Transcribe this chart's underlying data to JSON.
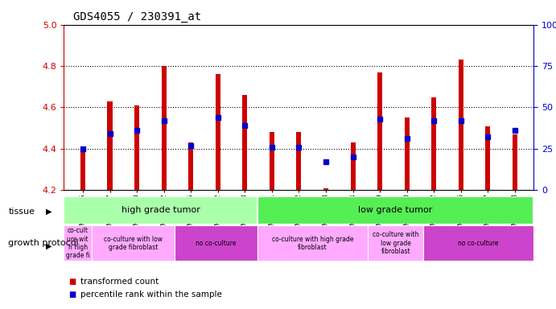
{
  "title": "GDS4055 / 230391_at",
  "samples": [
    "GSM665455",
    "GSM665447",
    "GSM665450",
    "GSM665452",
    "GSM665095",
    "GSM665102",
    "GSM665103",
    "GSM665071",
    "GSM665072",
    "GSM665073",
    "GSM665094",
    "GSM665069",
    "GSM665070",
    "GSM665042",
    "GSM665066",
    "GSM665067",
    "GSM665068"
  ],
  "transformed_count": [
    4.4,
    4.63,
    4.61,
    4.8,
    4.43,
    4.76,
    4.66,
    4.48,
    4.48,
    4.21,
    4.43,
    4.77,
    4.55,
    4.65,
    4.83,
    4.51,
    4.47
  ],
  "percentile_rank_pct": [
    25,
    34,
    36,
    42,
    27,
    44,
    39,
    26,
    26,
    17,
    20,
    43,
    31,
    42,
    42,
    32,
    36
  ],
  "ylim_left": [
    4.2,
    5.0
  ],
  "yticks_left": [
    4.2,
    4.4,
    4.6,
    4.8,
    5.0
  ],
  "ylim_right": [
    0,
    100
  ],
  "yticks_right": [
    0,
    25,
    50,
    75,
    100
  ],
  "yright_labels": [
    "0",
    "25",
    "50",
    "75",
    "100%"
  ],
  "bar_color": "#cc0000",
  "dot_color": "#0000cc",
  "bar_bottom": 4.2,
  "tissue_groups": [
    {
      "label": "high grade tumor",
      "start": 0,
      "end": 7,
      "color": "#aaffaa"
    },
    {
      "label": "low grade tumor",
      "start": 7,
      "end": 17,
      "color": "#55ee55"
    }
  ],
  "growth_protocol_groups": [
    {
      "label": "co-cult\nure wit\nh high\ngrade fi",
      "start": 0,
      "end": 1,
      "color": "#ffaaff"
    },
    {
      "label": "co-culture with low\ngrade fibroblast",
      "start": 1,
      "end": 4,
      "color": "#ffaaff"
    },
    {
      "label": "no co-culture",
      "start": 4,
      "end": 7,
      "color": "#cc44cc"
    },
    {
      "label": "co-culture with high grade\nfibroblast",
      "start": 7,
      "end": 11,
      "color": "#ffaaff"
    },
    {
      "label": "co-culture with\nlow grade\nfibroblast",
      "start": 11,
      "end": 13,
      "color": "#ffaaff"
    },
    {
      "label": "no co-culture",
      "start": 13,
      "end": 17,
      "color": "#cc44cc"
    }
  ],
  "legend_items": [
    {
      "label": "transformed count",
      "color": "#cc0000"
    },
    {
      "label": "percentile rank within the sample",
      "color": "#0000cc"
    }
  ],
  "left_yaxis_color": "#cc0000",
  "right_yaxis_color": "#0000cc"
}
